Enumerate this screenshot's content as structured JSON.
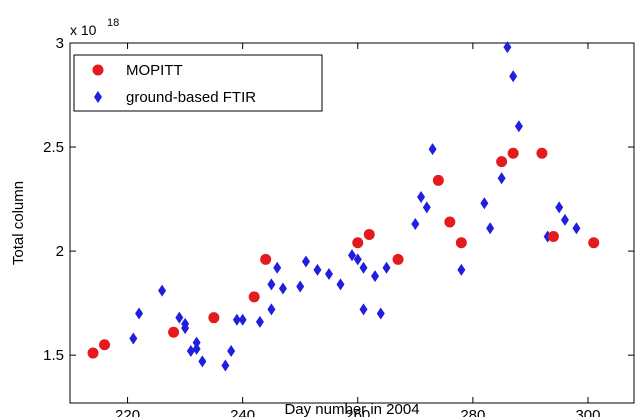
{
  "chart_data": {
    "type": "scatter",
    "xlabel": "Day number in 2004",
    "ylabel": "Total column",
    "y_exponent": {
      "base": "x 10",
      "power": "18"
    },
    "xlim": [
      210,
      308
    ],
    "ylim": [
      1.27,
      3.0
    ],
    "x_ticks": [
      220,
      240,
      260,
      280,
      300
    ],
    "x_tick_labels": [
      "220",
      "240",
      "260",
      "280",
      "300"
    ],
    "y_ticks": [
      1.5,
      2.0,
      2.5,
      3.0
    ],
    "y_tick_labels": [
      "1.5",
      "2",
      "2.5",
      "3"
    ],
    "grid": false,
    "legend_position": "top-left",
    "series": [
      {
        "name": "MOPITT",
        "marker": "circle",
        "color": "#e41a1c",
        "points": [
          [
            214,
            1.51
          ],
          [
            216,
            1.55
          ],
          [
            228,
            1.61
          ],
          [
            235,
            1.68
          ],
          [
            242,
            1.78
          ],
          [
            244,
            1.96
          ],
          [
            260,
            2.04
          ],
          [
            262,
            2.08
          ],
          [
            267,
            1.96
          ],
          [
            274,
            2.34
          ],
          [
            276,
            2.14
          ],
          [
            278,
            2.04
          ],
          [
            285,
            2.43
          ],
          [
            287,
            2.47
          ],
          [
            292,
            2.47
          ],
          [
            294,
            2.07
          ],
          [
            301,
            2.04
          ]
        ]
      },
      {
        "name": "ground-based FTIR",
        "marker": "diamond",
        "color": "#1f1fe0",
        "points": [
          [
            221,
            1.58
          ],
          [
            222,
            1.7
          ],
          [
            226,
            1.81
          ],
          [
            229,
            1.68
          ],
          [
            230,
            1.65
          ],
          [
            230,
            1.63
          ],
          [
            231,
            1.52
          ],
          [
            232,
            1.53
          ],
          [
            232,
            1.56
          ],
          [
            233,
            1.47
          ],
          [
            237,
            1.45
          ],
          [
            238,
            1.52
          ],
          [
            239,
            1.67
          ],
          [
            240,
            1.67
          ],
          [
            243,
            1.66
          ],
          [
            245,
            1.72
          ],
          [
            245,
            1.84
          ],
          [
            246,
            1.92
          ],
          [
            247,
            1.82
          ],
          [
            250,
            1.83
          ],
          [
            251,
            1.95
          ],
          [
            253,
            1.91
          ],
          [
            255,
            1.89
          ],
          [
            257,
            1.84
          ],
          [
            259,
            1.98
          ],
          [
            260,
            1.96
          ],
          [
            261,
            1.92
          ],
          [
            261,
            1.72
          ],
          [
            263,
            1.88
          ],
          [
            264,
            1.7
          ],
          [
            265,
            1.92
          ],
          [
            270,
            2.13
          ],
          [
            271,
            2.26
          ],
          [
            272,
            2.21
          ],
          [
            273,
            2.49
          ],
          [
            278,
            1.91
          ],
          [
            282,
            2.23
          ],
          [
            283,
            2.11
          ],
          [
            285,
            2.35
          ],
          [
            286,
            2.98
          ],
          [
            287,
            2.84
          ],
          [
            288,
            2.6
          ],
          [
            293,
            2.07
          ],
          [
            295,
            2.21
          ],
          [
            296,
            2.15
          ],
          [
            298,
            2.11
          ]
        ]
      }
    ]
  }
}
